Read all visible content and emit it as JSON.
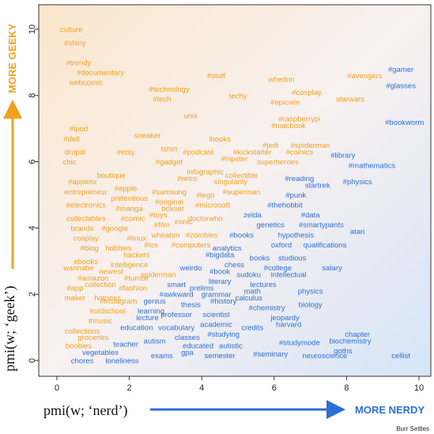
{
  "chart_data": {
    "type": "scatter",
    "title": "",
    "xlabel": "pmi(w; ‘nerd’)",
    "ylabel": "pmi(w; ‘geek’)",
    "x_arrow_label": "MORE NERDY",
    "y_arrow_label": "MORE GEEKY",
    "xlim": [
      -0.6,
      10.5
    ],
    "ylim": [
      -0.3,
      10.5
    ],
    "x_ticks": [
      "0",
      "2",
      "4",
      "6",
      "8",
      "10"
    ],
    "y_ticks": [
      "0",
      "2",
      "4",
      "6",
      "8",
      "10"
    ],
    "grid": false,
    "colors": {
      "geeky": "#f0a020",
      "nerdy": "#2b6fd6",
      "background_warm": "#fbe8d0",
      "background_cool": "#dce8f8"
    },
    "words": [
      {
        "w": "culture",
        "x": 0.4,
        "y": 10.0,
        "c": "geeky"
      },
      {
        "w": "#shiny",
        "x": 0.5,
        "y": 9.6,
        "c": "geeky"
      },
      {
        "w": "#trendy",
        "x": 0.6,
        "y": 9.0,
        "c": "geeky"
      },
      {
        "w": "#documentary",
        "x": 1.2,
        "y": 8.7,
        "c": "geeky"
      },
      {
        "w": "webcomic",
        "x": 0.8,
        "y": 8.4,
        "c": "geeky"
      },
      {
        "w": "#technology",
        "x": 3.1,
        "y": 8.2,
        "c": "geeky"
      },
      {
        "w": "#tech",
        "x": 2.9,
        "y": 7.9,
        "c": "geeky"
      },
      {
        "w": "#stuff",
        "x": 4.4,
        "y": 8.6,
        "c": "geeky"
      },
      {
        "w": "techy",
        "x": 5.0,
        "y": 8.0,
        "c": "geeky"
      },
      {
        "w": "whedon",
        "x": 6.2,
        "y": 8.5,
        "c": "geeky"
      },
      {
        "w": "#cosplay",
        "x": 6.9,
        "y": 8.1,
        "c": "geeky"
      },
      {
        "w": "#epicwin",
        "x": 6.3,
        "y": 7.8,
        "c": "geeky"
      },
      {
        "w": "starwars",
        "x": 8.1,
        "y": 7.9,
        "c": "geeky"
      },
      {
        "w": "#avengers",
        "x": 8.5,
        "y": 8.6,
        "c": "geeky"
      },
      {
        "w": "unix",
        "x": 3.7,
        "y": 7.4,
        "c": "geeky"
      },
      {
        "w": "#raspberrypi",
        "x": 6.7,
        "y": 7.3,
        "c": "geeky"
      },
      {
        "w": "#macbook",
        "x": 6.4,
        "y": 7.1,
        "c": "geeky"
      },
      {
        "w": "#ipod",
        "x": 0.6,
        "y": 7.0,
        "c": "geeky"
      },
      {
        "w": "#dell",
        "x": 0.4,
        "y": 6.7,
        "c": "geeky"
      },
      {
        "w": "sneaker",
        "x": 2.5,
        "y": 6.8,
        "c": "geeky"
      },
      {
        "w": "ibooks",
        "x": 4.5,
        "y": 6.7,
        "c": "geeky"
      },
      {
        "w": "#jedi",
        "x": 5.9,
        "y": 6.5,
        "c": "geeky"
      },
      {
        "w": "#spiderman",
        "x": 7.0,
        "y": 6.5,
        "c": "geeky"
      },
      {
        "w": "tshirt",
        "x": 3.1,
        "y": 6.4,
        "c": "geeky"
      },
      {
        "w": "drupal",
        "x": 0.5,
        "y": 6.3,
        "c": "geeky"
      },
      {
        "w": "#etsy",
        "x": 1.9,
        "y": 6.3,
        "c": "geeky"
      },
      {
        "w": "#podcast",
        "x": 3.9,
        "y": 6.3,
        "c": "geeky"
      },
      {
        "w": "#kickstarter",
        "x": 5.4,
        "y": 6.3,
        "c": "geeky"
      },
      {
        "w": "#comics",
        "x": 6.7,
        "y": 6.3,
        "c": "geeky"
      },
      {
        "w": "#library",
        "x": 7.9,
        "y": 6.2,
        "c": "nerdy"
      },
      {
        "w": "chic",
        "x": 0.35,
        "y": 6.0,
        "c": "geeky"
      },
      {
        "w": "#gadget",
        "x": 3.1,
        "y": 6.0,
        "c": "geeky"
      },
      {
        "w": "#hipster",
        "x": 4.9,
        "y": 6.1,
        "c": "geeky"
      },
      {
        "w": "superheroes",
        "x": 6.1,
        "y": 6.0,
        "c": "geeky"
      },
      {
        "w": "#mathematics",
        "x": 8.7,
        "y": 5.9,
        "c": "nerdy"
      },
      {
        "w": "#bookworm",
        "x": 9.6,
        "y": 7.2,
        "c": "nerdy"
      },
      {
        "w": "#gamer",
        "x": 9.5,
        "y": 8.8,
        "c": "nerdy"
      },
      {
        "w": "#glasses",
        "x": 9.5,
        "y": 8.3,
        "c": "nerdy"
      },
      {
        "w": "boutique",
        "x": 1.5,
        "y": 5.6,
        "c": "geeky"
      },
      {
        "w": "infographic",
        "x": 4.1,
        "y": 5.7,
        "c": "geeky"
      },
      {
        "w": "collectible",
        "x": 5.1,
        "y": 5.6,
        "c": "geeky"
      },
      {
        "w": "#reading",
        "x": 6.7,
        "y": 5.5,
        "c": "nerdy"
      },
      {
        "w": "#appletv",
        "x": 0.7,
        "y": 5.4,
        "c": "geeky"
      },
      {
        "w": "#retro",
        "x": 3.6,
        "y": 5.5,
        "c": "geeky"
      },
      {
        "w": "singularity",
        "x": 4.8,
        "y": 5.4,
        "c": "geeky"
      },
      {
        "w": "#physics",
        "x": 8.3,
        "y": 5.4,
        "c": "nerdy"
      },
      {
        "w": "startrek",
        "x": 7.2,
        "y": 5.3,
        "c": "nerdy"
      },
      {
        "w": "#apple",
        "x": 1.9,
        "y": 5.2,
        "c": "geeky"
      },
      {
        "w": "#samsung",
        "x": 3.1,
        "y": 5.1,
        "c": "geeky"
      },
      {
        "w": "entrepreneur",
        "x": 0.8,
        "y": 5.1,
        "c": "geeky"
      },
      {
        "w": "pretentious",
        "x": 2.0,
        "y": 4.9,
        "c": "geeky"
      },
      {
        "w": "#original",
        "x": 3.1,
        "y": 4.8,
        "c": "geeky"
      },
      {
        "w": "#lego",
        "x": 4.1,
        "y": 5.0,
        "c": "geeky"
      },
      {
        "w": "#superman",
        "x": 5.1,
        "y": 5.1,
        "c": "geeky"
      },
      {
        "w": "#punk",
        "x": 6.6,
        "y": 5.0,
        "c": "nerdy"
      },
      {
        "w": "#electronics",
        "x": 0.8,
        "y": 4.7,
        "c": "geeky"
      },
      {
        "w": "#manga",
        "x": 2.0,
        "y": 4.6,
        "c": "geeky"
      },
      {
        "w": "boxset",
        "x": 3.2,
        "y": 4.6,
        "c": "geeky"
      },
      {
        "w": "#microsoft",
        "x": 4.3,
        "y": 4.7,
        "c": "geeky"
      },
      {
        "w": "#thehobbit",
        "x": 6.3,
        "y": 4.7,
        "c": "nerdy"
      },
      {
        "w": "#toys",
        "x": 2.8,
        "y": 4.4,
        "c": "geeky"
      },
      {
        "w": "doctorwho",
        "x": 4.1,
        "y": 4.3,
        "c": "geeky"
      },
      {
        "w": "zelda",
        "x": 5.4,
        "y": 4.4,
        "c": "nerdy"
      },
      {
        "w": "#data",
        "x": 7.0,
        "y": 4.4,
        "c": "nerdy"
      },
      {
        "w": "collectables",
        "x": 0.8,
        "y": 4.3,
        "c": "geeky"
      },
      {
        "w": "#comic",
        "x": 2.1,
        "y": 4.3,
        "c": "geeky"
      },
      {
        "w": "#film",
        "x": 2.9,
        "y": 4.1,
        "c": "geeky"
      },
      {
        "w": "ironic",
        "x": 3.5,
        "y": 4.2,
        "c": "geeky"
      },
      {
        "w": "genetics",
        "x": 5.9,
        "y": 4.1,
        "c": "nerdy"
      },
      {
        "w": "#smartypants",
        "x": 7.3,
        "y": 4.1,
        "c": "nerdy"
      },
      {
        "w": "brands",
        "x": 0.7,
        "y": 4.0,
        "c": "geeky"
      },
      {
        "w": "#google",
        "x": 1.6,
        "y": 4.0,
        "c": "geeky"
      },
      {
        "w": "atari",
        "x": 8.3,
        "y": 3.9,
        "c": "nerdy"
      },
      {
        "w": "#linux",
        "x": 2.2,
        "y": 3.7,
        "c": "geeky"
      },
      {
        "w": "wheaton",
        "x": 3.0,
        "y": 3.8,
        "c": "geeky"
      },
      {
        "w": "#zombies",
        "x": 4.0,
        "y": 3.8,
        "c": "geeky"
      },
      {
        "w": "#books",
        "x": 5.1,
        "y": 3.8,
        "c": "nerdy"
      },
      {
        "w": "hypothesis",
        "x": 6.6,
        "y": 3.8,
        "c": "nerdy"
      },
      {
        "w": "cosplay",
        "x": 0.8,
        "y": 3.7,
        "c": "geeky"
      },
      {
        "w": "hobbies",
        "x": 1.7,
        "y": 3.4,
        "c": "geeky"
      },
      {
        "w": "#ios",
        "x": 2.6,
        "y": 3.5,
        "c": "geeky"
      },
      {
        "w": "#computers",
        "x": 3.7,
        "y": 3.5,
        "c": "geeky"
      },
      {
        "w": "analytics",
        "x": 4.7,
        "y": 3.4,
        "c": "nerdy"
      },
      {
        "w": "oxford",
        "x": 6.2,
        "y": 3.5,
        "c": "nerdy"
      },
      {
        "w": "qualifications",
        "x": 7.4,
        "y": 3.5,
        "c": "nerdy"
      },
      {
        "w": "#blog",
        "x": 0.9,
        "y": 3.4,
        "c": "geeky"
      },
      {
        "w": "hackers",
        "x": 2.2,
        "y": 3.2,
        "c": "geeky"
      },
      {
        "w": "#bigdata",
        "x": 4.5,
        "y": 3.2,
        "c": "nerdy"
      },
      {
        "w": "books",
        "x": 5.6,
        "y": 3.1,
        "c": "nerdy"
      },
      {
        "w": "studious",
        "x": 6.5,
        "y": 3.1,
        "c": "nerdy"
      },
      {
        "w": "ebooks",
        "x": 0.8,
        "y": 3.0,
        "c": "geeky"
      },
      {
        "w": "intelligence",
        "x": 2.0,
        "y": 2.9,
        "c": "geeky"
      },
      {
        "w": "chess",
        "x": 4.9,
        "y": 2.9,
        "c": "nerdy"
      },
      {
        "w": "#college",
        "x": 6.1,
        "y": 2.8,
        "c": "nerdy"
      },
      {
        "w": "salary",
        "x": 7.6,
        "y": 2.8,
        "c": "nerdy"
      },
      {
        "w": "wannabe",
        "x": 0.6,
        "y": 2.8,
        "c": "geeky"
      },
      {
        "w": "newest",
        "x": 1.5,
        "y": 2.7,
        "c": "geeky"
      },
      {
        "w": "weirdo",
        "x": 3.7,
        "y": 2.8,
        "c": "nerdy"
      },
      {
        "w": "#book",
        "x": 4.5,
        "y": 2.7,
        "c": "nerdy"
      },
      {
        "w": "spiderman",
        "x": 2.8,
        "y": 2.6,
        "c": "geeky"
      },
      {
        "w": "sudoku",
        "x": 5.3,
        "y": 2.6,
        "c": "nerdy"
      },
      {
        "w": "intellectual",
        "x": 6.4,
        "y": 2.6,
        "c": "nerdy"
      },
      {
        "w": "#amazon",
        "x": 1.0,
        "y": 2.5,
        "c": "geeky"
      },
      {
        "w": "#tumblr",
        "x": 2.2,
        "y": 2.5,
        "c": "geeky"
      },
      {
        "w": "literary",
        "x": 4.5,
        "y": 2.4,
        "c": "nerdy"
      },
      {
        "w": "collection",
        "x": 1.2,
        "y": 2.3,
        "c": "geeky"
      },
      {
        "w": "#fashion",
        "x": 2.1,
        "y": 2.2,
        "c": "geeky"
      },
      {
        "w": "smart",
        "x": 3.3,
        "y": 2.3,
        "c": "nerdy"
      },
      {
        "w": "lectures",
        "x": 5.7,
        "y": 2.3,
        "c": "nerdy"
      },
      {
        "w": "#app",
        "x": 0.5,
        "y": 2.2,
        "c": "geeky"
      },
      {
        "w": "prelims",
        "x": 4.0,
        "y": 2.2,
        "c": "nerdy"
      },
      {
        "w": "#awkward",
        "x": 3.3,
        "y": 2.0,
        "c": "nerdy"
      },
      {
        "w": "math",
        "x": 5.4,
        "y": 2.1,
        "c": "nerdy"
      },
      {
        "w": "physics",
        "x": 7.0,
        "y": 2.1,
        "c": "nerdy"
      },
      {
        "w": "maker",
        "x": 0.5,
        "y": 1.9,
        "c": "geeky"
      },
      {
        "w": "hotness",
        "x": 1.4,
        "y": 1.9,
        "c": "geeky"
      },
      {
        "w": "grammar",
        "x": 4.4,
        "y": 2.0,
        "c": "nerdy"
      },
      {
        "w": "calculus",
        "x": 5.3,
        "y": 1.9,
        "c": "nerdy"
      },
      {
        "w": "#instagram",
        "x": 1.7,
        "y": 1.8,
        "c": "geeky"
      },
      {
        "w": "genius",
        "x": 2.7,
        "y": 1.8,
        "c": "nerdy"
      },
      {
        "w": "thesis",
        "x": 3.7,
        "y": 1.7,
        "c": "nerdy"
      },
      {
        "w": "#history",
        "x": 4.6,
        "y": 1.8,
        "c": "nerdy"
      },
      {
        "w": "biology",
        "x": 7.0,
        "y": 1.7,
        "c": "nerdy"
      },
      {
        "w": "learning",
        "x": 2.6,
        "y": 1.5,
        "c": "nerdy"
      },
      {
        "w": "#chemistry",
        "x": 5.8,
        "y": 1.6,
        "c": "nerdy"
      },
      {
        "w": "#oldschool",
        "x": 1.4,
        "y": 1.5,
        "c": "geeky"
      },
      {
        "w": "scientist",
        "x": 4.4,
        "y": 1.4,
        "c": "nerdy"
      },
      {
        "w": "lecture",
        "x": 2.5,
        "y": 1.3,
        "c": "nerdy"
      },
      {
        "w": "professor",
        "x": 3.3,
        "y": 1.4,
        "c": "nerdy"
      },
      {
        "w": "jeopardy",
        "x": 6.3,
        "y": 1.3,
        "c": "nerdy"
      },
      {
        "w": "#music",
        "x": 1.2,
        "y": 1.2,
        "c": "geeky"
      },
      {
        "w": "academic",
        "x": 4.4,
        "y": 1.1,
        "c": "nerdy"
      },
      {
        "w": "harvard",
        "x": 6.4,
        "y": 1.1,
        "c": "nerdy"
      },
      {
        "w": "education",
        "x": 2.2,
        "y": 1.0,
        "c": "nerdy"
      },
      {
        "w": "vocabulary",
        "x": 3.3,
        "y": 1.0,
        "c": "nerdy"
      },
      {
        "w": "credits",
        "x": 5.4,
        "y": 1.0,
        "c": "nerdy"
      },
      {
        "w": "collections",
        "x": 0.7,
        "y": 0.9,
        "c": "geeky"
      },
      {
        "w": "#studying",
        "x": 4.6,
        "y": 0.8,
        "c": "nerdy"
      },
      {
        "w": "chapter",
        "x": 8.3,
        "y": 0.8,
        "c": "nerdy"
      },
      {
        "w": "groceries",
        "x": 1.0,
        "y": 0.7,
        "c": "geeky"
      },
      {
        "w": "classes",
        "x": 3.6,
        "y": 0.7,
        "c": "nerdy"
      },
      {
        "w": "biochemistry",
        "x": 8.1,
        "y": 0.6,
        "c": "nerdy"
      },
      {
        "w": "autism",
        "x": 2.7,
        "y": 0.6,
        "c": "nerdy"
      },
      {
        "w": "#studymode",
        "x": 6.7,
        "y": 0.55,
        "c": "nerdy"
      },
      {
        "w": "boobies",
        "x": 0.6,
        "y": 0.45,
        "c": "geeky"
      },
      {
        "w": "teacher",
        "x": 1.9,
        "y": 0.5,
        "c": "nerdy"
      },
      {
        "w": "educated",
        "x": 3.9,
        "y": 0.45,
        "c": "nerdy"
      },
      {
        "w": "autistic",
        "x": 4.8,
        "y": 0.45,
        "c": "nerdy"
      },
      {
        "w": "goths",
        "x": 7.9,
        "y": 0.3,
        "c": "nerdy"
      },
      {
        "w": "vegetables",
        "x": 1.2,
        "y": 0.25,
        "c": "nerdy"
      },
      {
        "w": "exams",
        "x": 2.9,
        "y": 0.15,
        "c": "nerdy"
      },
      {
        "w": "gpa",
        "x": 3.6,
        "y": 0.25,
        "c": "nerdy"
      },
      {
        "w": "#seminary",
        "x": 5.9,
        "y": 0.2,
        "c": "nerdy"
      },
      {
        "w": "semester",
        "x": 4.5,
        "y": 0.15,
        "c": "nerdy"
      },
      {
        "w": "neuroscience",
        "x": 7.4,
        "y": 0.15,
        "c": "nerdy"
      },
      {
        "w": "cellist",
        "x": 9.5,
        "y": 0.15,
        "c": "nerdy"
      },
      {
        "w": "chores",
        "x": 0.7,
        "y": 0.0,
        "c": "nerdy"
      },
      {
        "w": "loneliness",
        "x": 1.8,
        "y": 0.0,
        "c": "nerdy"
      }
    ]
  },
  "credit": "Burr Settles"
}
